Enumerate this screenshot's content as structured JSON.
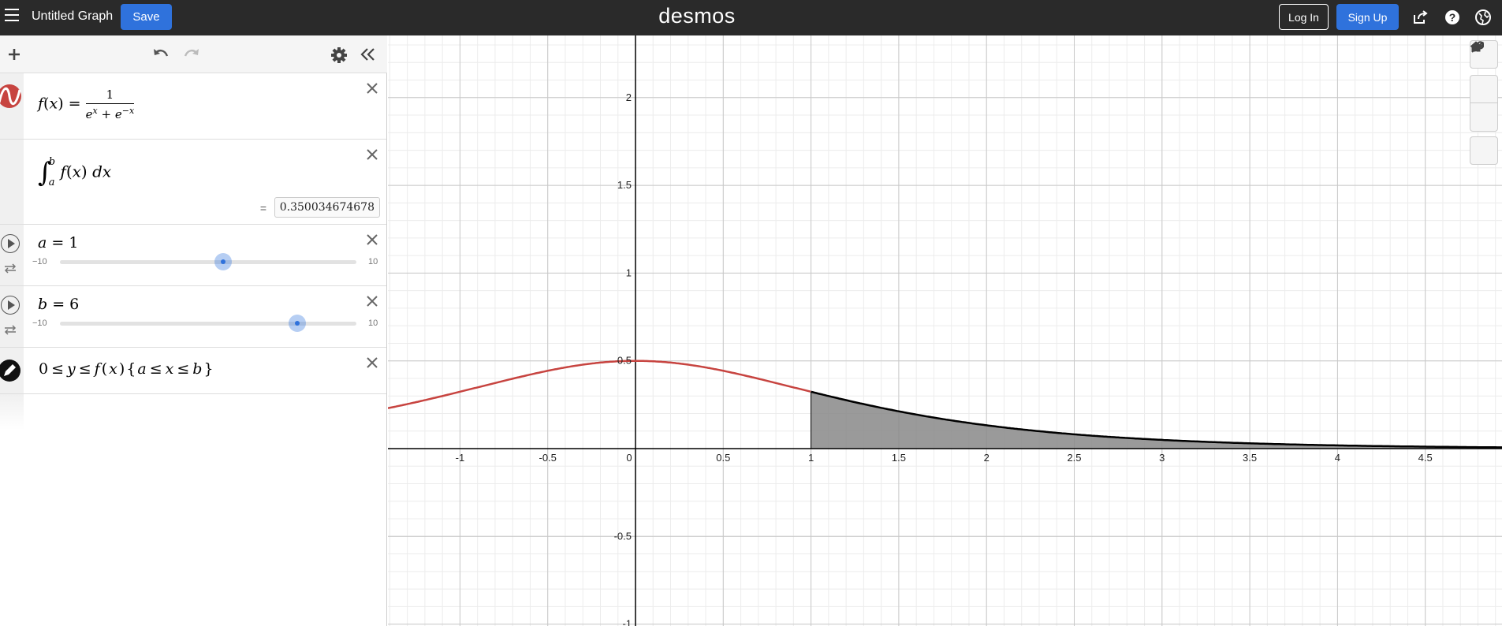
{
  "header": {
    "graph_title": "Untitled Graph",
    "save_label": "Save",
    "brand": "desmos",
    "login_label": "Log In",
    "signup_label": "Sign Up"
  },
  "expressions": [
    {
      "id": "f",
      "color": "#c74440",
      "lhs": "f",
      "arg": "x",
      "numerator": "1",
      "den_a": "e",
      "den_a_exp": "x",
      "den_plus": "+",
      "den_b": "e",
      "den_b_exp": "−x"
    },
    {
      "id": "integral",
      "upper": "b",
      "lower": "a",
      "body": "f",
      "arg": "x",
      "dx": "dx",
      "result_eq": "=",
      "result": "0.350034674678"
    },
    {
      "id": "a",
      "name": "a",
      "value": "1",
      "min": "−10",
      "max": "10",
      "slider_value": 1
    },
    {
      "id": "b",
      "name": "b",
      "value": "6",
      "min": "−10",
      "max": "10",
      "slider_value": 6
    },
    {
      "id": "region",
      "color": "#000000",
      "text_parts": [
        "0",
        "≤",
        "y",
        "≤",
        "f",
        "(",
        "x",
        ")",
        "{",
        "a",
        "≤",
        "x",
        "≤",
        "b",
        "}"
      ]
    }
  ],
  "graph": {
    "x_ticks": [
      "-1",
      "-0.5",
      "0",
      "0.5",
      "1",
      "1.5",
      "2",
      "2.5",
      "3",
      "3.5",
      "4",
      "4.5"
    ],
    "y_ticks": [
      "2",
      "1.5",
      "1",
      "0.5",
      "-0.5",
      "-1"
    ],
    "curve_color": "#c74440",
    "shade_color": "#888888",
    "shade_range": [
      1,
      6
    ]
  },
  "icons": {
    "menu": "hamburger-icon",
    "share": "share-icon",
    "help": "help-icon",
    "language": "globe-icon",
    "add": "plus-icon",
    "undo": "undo-icon",
    "redo": "redo-icon",
    "settings": "gear-icon",
    "collapse": "double-chevron-left-icon",
    "wrench": "wrench-icon",
    "zoom_in": "zoom-in-icon",
    "zoom_out": "zoom-out-icon",
    "home": "home-icon"
  }
}
